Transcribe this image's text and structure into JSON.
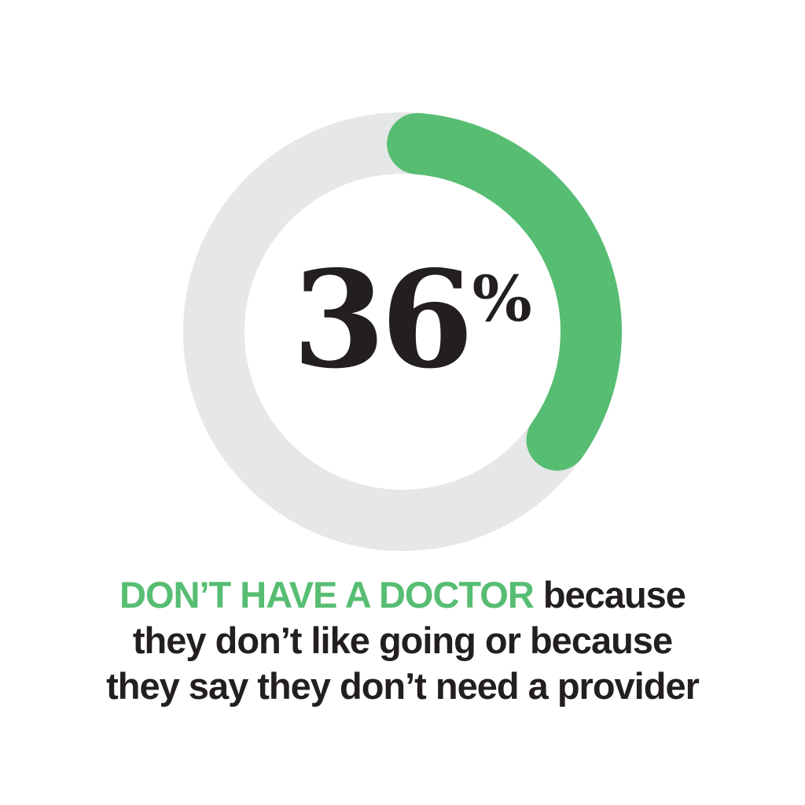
{
  "colors": {
    "accent": "#57bd72",
    "track": "#e6e7e8",
    "text": "#231f20",
    "background": "#ffffff"
  },
  "chart_data": {
    "type": "donut",
    "value": 36,
    "unit": "%",
    "max": 100
  },
  "stat": {
    "value": "36",
    "unit": "%"
  },
  "caption": {
    "highlight": "DON’T HAVE A DOCTOR",
    "line1_rest": " because",
    "line2": "they don’t like going or because",
    "line3": "they say they don’t need a provider"
  }
}
